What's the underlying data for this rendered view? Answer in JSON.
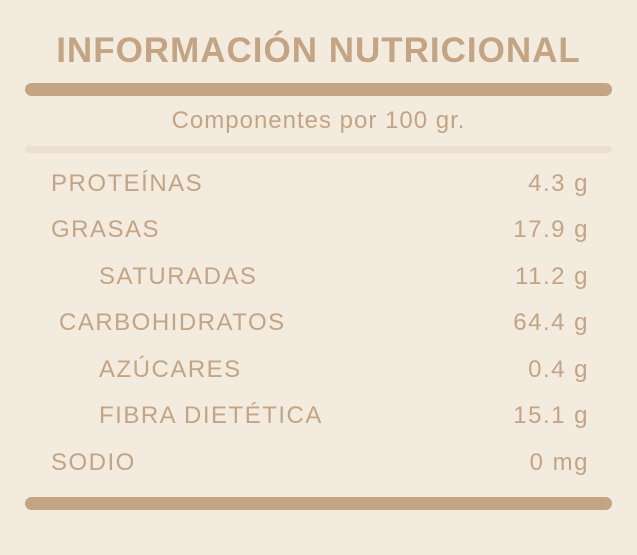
{
  "colors": {
    "accent_tan": "#c3a485",
    "light_rule": "#ecdfd0",
    "background": "#f2ebde"
  },
  "header": {
    "title": "INFORMACIÓN NUTRICIONAL",
    "subtitle": "Componentes por 100 gr."
  },
  "table": {
    "rows": [
      {
        "label": "PROTEÍNAS",
        "value": "4.3 g",
        "indent": 0
      },
      {
        "label": "GRASAS",
        "value": "17.9 g",
        "indent": 0
      },
      {
        "label": "SATURADAS",
        "value": "11.2 g",
        "indent": 2
      },
      {
        "label": "CARBOHIDRATOS",
        "value": "64.4 g",
        "indent": 1
      },
      {
        "label": "AZÚCARES",
        "value": "0.4 g",
        "indent": 2
      },
      {
        "label": "FIBRA DIETÉTICA",
        "value": "15.1 g",
        "indent": 2
      },
      {
        "label": "SODIO",
        "value": "0 mg",
        "indent": 0
      }
    ]
  }
}
